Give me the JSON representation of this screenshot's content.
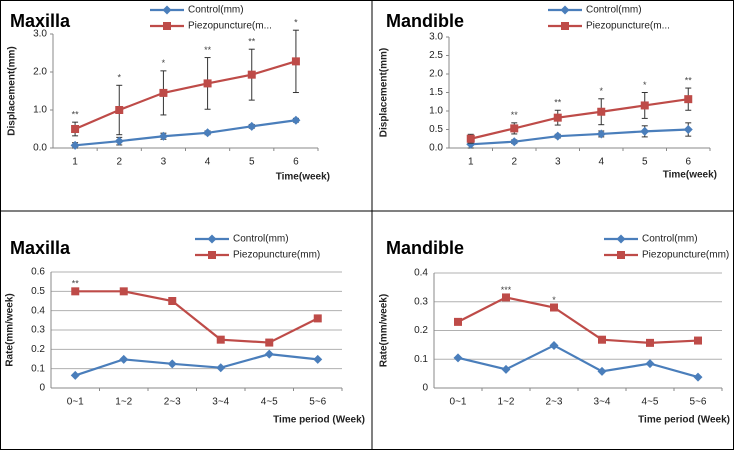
{
  "chart_data": [
    {
      "type": "line",
      "title": "Maxilla",
      "y_label": "Displacement(mm)",
      "x_label": "Time(week)",
      "categories": [
        "1",
        "2",
        "3",
        "4",
        "5",
        "6"
      ],
      "ylim": [
        0,
        3
      ],
      "yticks": [
        {
          "value": 0,
          "label": "0.0"
        },
        {
          "value": 1,
          "label": "1.0"
        },
        {
          "value": 2,
          "label": "2.0"
        },
        {
          "value": 3,
          "label": "3.0"
        }
      ],
      "grid": false,
      "series": [
        {
          "name": "Control(mm)",
          "color": "#4a7ebb",
          "marker": "diamond",
          "values": [
            0.07,
            0.18,
            0.31,
            0.4,
            0.57,
            0.73
          ],
          "errors": [
            0.07,
            0.1,
            0.08,
            0.05,
            0.05,
            0.05
          ]
        },
        {
          "name": "Piezopuncture(m...",
          "color": "#be4b48",
          "marker": "square",
          "values": [
            0.5,
            1.0,
            1.45,
            1.7,
            1.93,
            2.28
          ],
          "errors": [
            0.18,
            0.65,
            0.58,
            0.68,
            0.67,
            0.82
          ]
        }
      ],
      "annotations": [
        "**",
        "*",
        "*",
        "**",
        "**",
        "*"
      ]
    },
    {
      "type": "line",
      "title": "Mandible",
      "y_label": "Displacement(mm)",
      "x_label": "Time(week)",
      "categories": [
        "1",
        "2",
        "3",
        "4",
        "5",
        "6"
      ],
      "ylim": [
        0,
        3
      ],
      "yticks": [
        {
          "value": 0,
          "label": "0.0"
        },
        0.5,
        {
          "value": 1,
          "label": "1.0"
        },
        1.5,
        {
          "value": 2,
          "label": "2.0"
        },
        2.5,
        {
          "value": 3,
          "label": "3.0"
        }
      ],
      "grid": false,
      "series": [
        {
          "name": "Control(mm)",
          "color": "#4a7ebb",
          "marker": "diamond",
          "values": [
            0.1,
            0.17,
            0.32,
            0.38,
            0.45,
            0.5
          ],
          "errors": [
            0.1,
            0.05,
            0.05,
            0.08,
            0.15,
            0.18
          ]
        },
        {
          "name": "Piezopuncture(m...",
          "color": "#be4b48",
          "marker": "square",
          "values": [
            0.25,
            0.53,
            0.82,
            0.98,
            1.15,
            1.32
          ],
          "errors": [
            0.12,
            0.15,
            0.2,
            0.35,
            0.35,
            0.3
          ]
        }
      ],
      "annotations": [
        null,
        "**",
        "**",
        "*",
        "*",
        "**"
      ]
    },
    {
      "type": "line",
      "title": "Maxilla",
      "y_label": "Rate(mm/week)",
      "x_label": "Time period (Week)",
      "categories": [
        "0~1",
        "1~2",
        "2~3",
        "3~4",
        "4~5",
        "5~6"
      ],
      "ylim": [
        0,
        0.6
      ],
      "yticks": [
        0,
        0.1,
        0.2,
        0.3,
        0.4,
        0.5,
        0.6
      ],
      "grid": true,
      "series": [
        {
          "name": "Control(mm)",
          "color": "#4a7ebb",
          "marker": "diamond",
          "values": [
            0.065,
            0.148,
            0.125,
            0.105,
            0.175,
            0.148
          ]
        },
        {
          "name": "Piezopuncture(mm)",
          "color": "#be4b48",
          "marker": "square",
          "values": [
            0.5,
            0.5,
            0.45,
            0.25,
            0.235,
            0.36
          ]
        }
      ],
      "annotations": [
        "**",
        null,
        null,
        null,
        null,
        null
      ]
    },
    {
      "type": "line",
      "title": "Mandible",
      "y_label": "Rate(mm/week)",
      "x_label": "Time period (Week)",
      "categories": [
        "0~1",
        "1~2",
        "2~3",
        "3~4",
        "4~5",
        "5~6"
      ],
      "ylim": [
        0,
        0.4
      ],
      "yticks": [
        0,
        0.1,
        0.2,
        0.3,
        0.4
      ],
      "grid": true,
      "series": [
        {
          "name": "Control(mm)",
          "color": "#4a7ebb",
          "marker": "diamond",
          "values": [
            0.105,
            0.065,
            0.148,
            0.058,
            0.085,
            0.038
          ]
        },
        {
          "name": "Piezopuncture(mm)",
          "color": "#be4b48",
          "marker": "square",
          "values": [
            0.23,
            0.315,
            0.28,
            0.168,
            0.157,
            0.165
          ]
        }
      ],
      "annotations": [
        null,
        "***",
        "*",
        null,
        null,
        null
      ]
    }
  ]
}
